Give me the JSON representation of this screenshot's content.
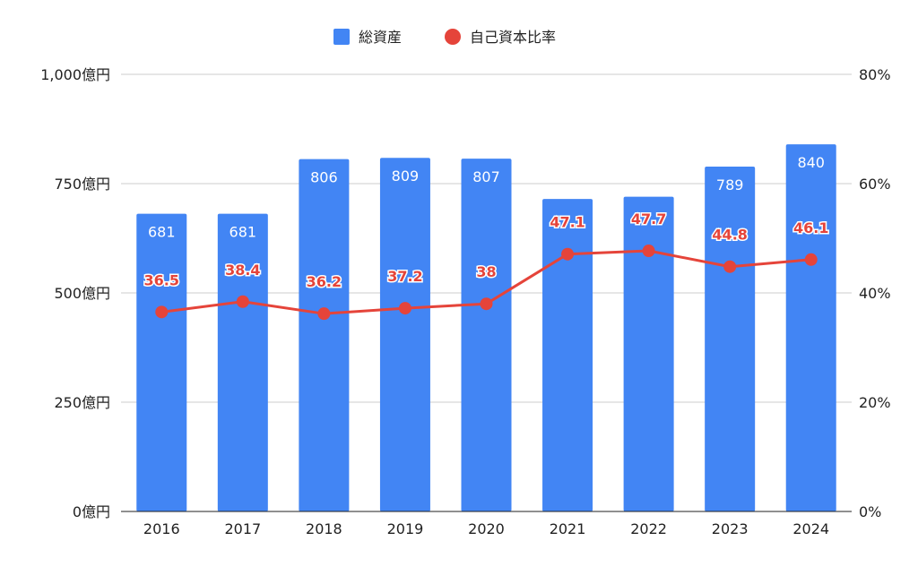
{
  "legend": {
    "bar_label": "総資産",
    "line_label": "自己資本比率"
  },
  "colors": {
    "bar": "#4285f4",
    "line": "#e5443a",
    "grid": "#cccccc",
    "axis": "#222222"
  },
  "chart_data": {
    "type": "bar",
    "categories": [
      "2016",
      "2017",
      "2018",
      "2019",
      "2020",
      "2021",
      "2022",
      "2023",
      "2024"
    ],
    "series": [
      {
        "name": "総資産",
        "type": "bar",
        "axis": "left",
        "values": [
          681,
          681,
          806,
          809,
          807,
          715,
          720,
          789,
          840
        ],
        "data_labels": [
          "681",
          "681",
          "806",
          "809",
          "807",
          "",
          "",
          "789",
          "840"
        ]
      },
      {
        "name": "自己資本比率",
        "type": "line",
        "axis": "right",
        "values": [
          36.5,
          38.4,
          36.2,
          37.2,
          38,
          47.1,
          47.7,
          44.8,
          46.1
        ],
        "data_labels": [
          "36.5",
          "38.4",
          "36.2",
          "37.2",
          "38",
          "47.1",
          "47.7",
          "44.8",
          "46.1"
        ]
      }
    ],
    "y_left": {
      "ylim": [
        0,
        1000
      ],
      "ticks": [
        0,
        250,
        500,
        750,
        1000
      ],
      "tick_labels": [
        "0億円",
        "250億円",
        "500億円",
        "750億円",
        "1,000億円"
      ]
    },
    "y_right": {
      "ylim": [
        0,
        80
      ],
      "ticks": [
        0,
        20,
        40,
        60,
        80
      ],
      "tick_labels": [
        "0%",
        "20%",
        "40%",
        "60%",
        "80%"
      ]
    },
    "grid": true,
    "legend_position": "top"
  }
}
